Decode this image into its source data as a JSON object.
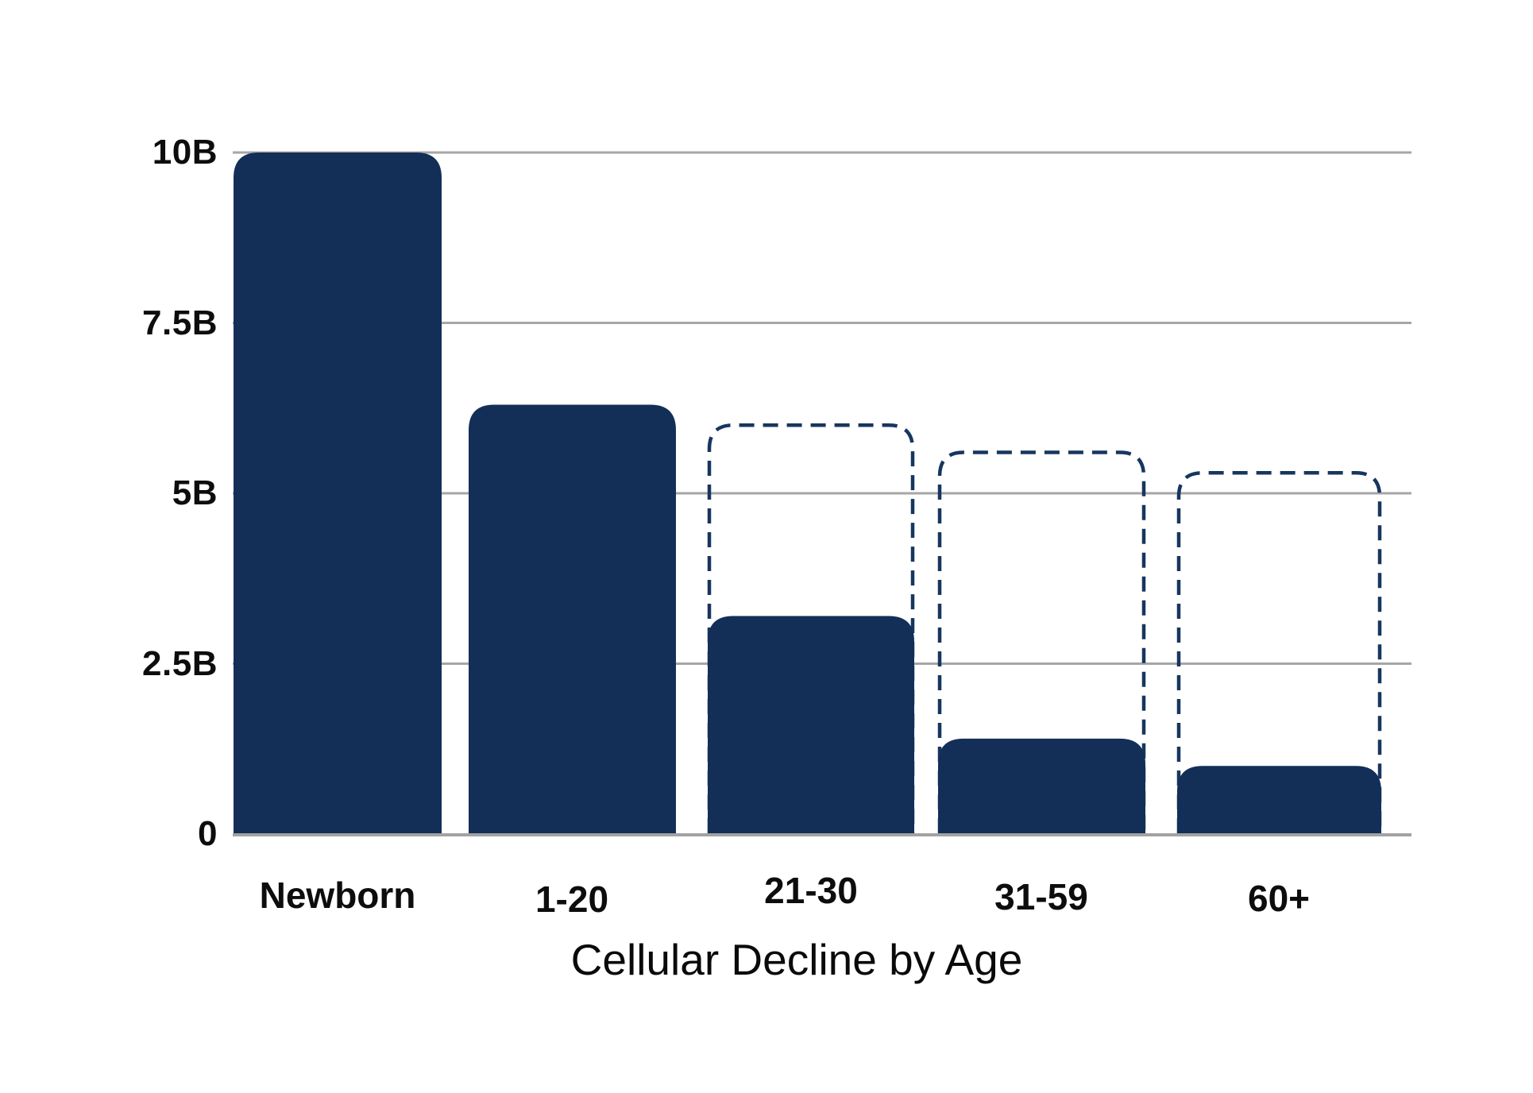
{
  "chart_data": {
    "type": "bar",
    "title": "Cellular Decline by Age",
    "categories": [
      "Newborn",
      "1-20",
      "21-30",
      "31-59",
      "60+"
    ],
    "series": [
      {
        "name": "current-cell-count-solid",
        "values": [
          10,
          6.3,
          3.2,
          1.4,
          1.0
        ]
      },
      {
        "name": "prior-cell-count-dashed-outline",
        "values": [
          null,
          null,
          6.0,
          5.6,
          5.3
        ]
      }
    ],
    "unit": "B",
    "y_ticks": [
      {
        "label": "10B",
        "value": 10
      },
      {
        "label": "7.5B",
        "value": 7.5
      },
      {
        "label": "5B",
        "value": 5
      },
      {
        "label": "2.5B",
        "value": 2.5
      },
      {
        "label": "0",
        "value": 0
      }
    ],
    "ylim": [
      0,
      10
    ],
    "xlabel": "",
    "ylabel": "",
    "grid": true,
    "legend_position": "none"
  },
  "colors": {
    "bar_fill": "#132f58",
    "dashed_outline": "#17365f",
    "gridline": "#a6a6a6",
    "baseline": "#a2a2a2",
    "label_text": "#0d0d0d",
    "background": "#ffffff"
  }
}
